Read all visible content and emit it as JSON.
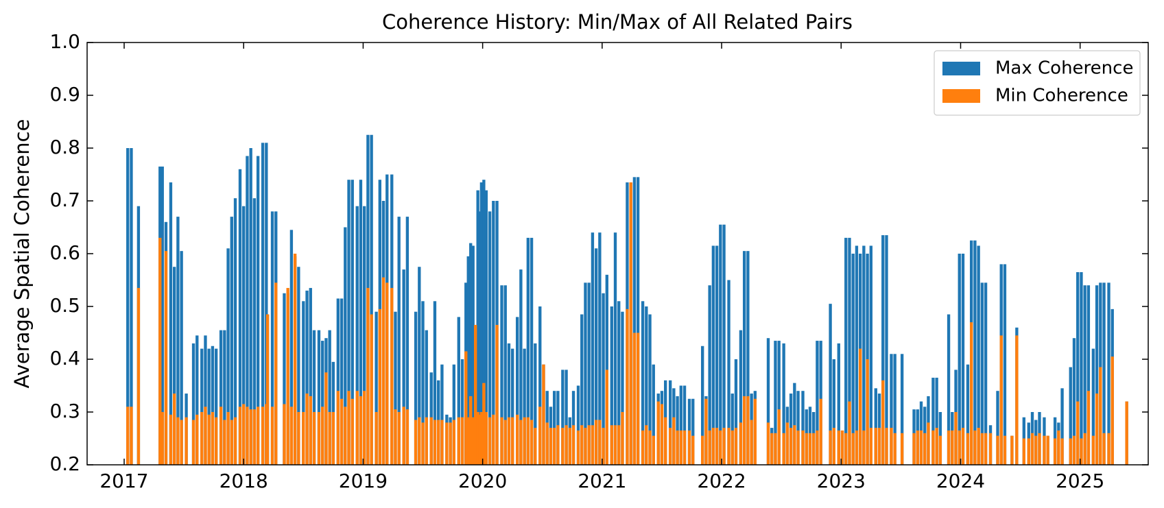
{
  "chart_data": {
    "type": "bar",
    "title": "Coherence History: Min/Max of All Related Pairs",
    "y_label": "Average Spatial Coherence",
    "x": [
      2017.03,
      2017.06,
      2017.12,
      2017.3,
      2017.32,
      2017.35,
      2017.39,
      2017.42,
      2017.45,
      2017.48,
      2017.52,
      2017.58,
      2017.61,
      2017.65,
      2017.68,
      2017.71,
      2017.74,
      2017.77,
      2017.81,
      2017.84,
      2017.87,
      2017.9,
      2017.93,
      2017.97,
      2018.0,
      2018.03,
      2018.06,
      2018.09,
      2018.12,
      2018.16,
      2018.19,
      2018.2,
      2018.24,
      2018.27,
      2018.34,
      2018.37,
      2018.4,
      2018.43,
      2018.46,
      2018.5,
      2018.53,
      2018.56,
      2018.59,
      2018.63,
      2018.66,
      2018.69,
      2018.72,
      2018.75,
      2018.79,
      2018.82,
      2018.85,
      2018.88,
      2018.91,
      2018.95,
      2018.98,
      2019.01,
      2019.04,
      2019.07,
      2019.11,
      2019.14,
      2019.17,
      2019.2,
      2019.24,
      2019.27,
      2019.3,
      2019.34,
      2019.37,
      2019.44,
      2019.47,
      2019.5,
      2019.53,
      2019.57,
      2019.6,
      2019.63,
      2019.66,
      2019.7,
      2019.73,
      2019.76,
      2019.8,
      2019.83,
      2019.86,
      2019.88,
      2019.9,
      2019.92,
      2019.94,
      2019.96,
      2019.98,
      2019.99,
      2020.01,
      2020.03,
      2020.06,
      2020.09,
      2020.12,
      2020.16,
      2020.19,
      2020.22,
      2020.25,
      2020.29,
      2020.32,
      2020.35,
      2020.38,
      2020.41,
      2020.44,
      2020.48,
      2020.51,
      2020.54,
      2020.57,
      2020.6,
      2020.63,
      2020.67,
      2020.7,
      2020.73,
      2020.76,
      2020.8,
      2020.83,
      2020.86,
      2020.89,
      2020.92,
      2020.95,
      2020.98,
      2021.01,
      2021.04,
      2021.08,
      2021.11,
      2021.14,
      2021.17,
      2021.21,
      2021.24,
      2021.27,
      2021.3,
      2021.34,
      2021.37,
      2021.4,
      2021.43,
      2021.47,
      2021.5,
      2021.53,
      2021.57,
      2021.6,
      2021.63,
      2021.66,
      2021.69,
      2021.73,
      2021.76,
      2021.84,
      2021.87,
      2021.9,
      2021.93,
      2021.96,
      2021.99,
      2022.02,
      2022.06,
      2022.09,
      2022.12,
      2022.16,
      2022.19,
      2022.22,
      2022.25,
      2022.28,
      2022.39,
      2022.42,
      2022.45,
      2022.48,
      2022.52,
      2022.55,
      2022.58,
      2022.61,
      2022.64,
      2022.68,
      2022.71,
      2022.74,
      2022.77,
      2022.8,
      2022.83,
      2022.91,
      2022.94,
      2022.98,
      2023.01,
      2023.04,
      2023.07,
      2023.1,
      2023.13,
      2023.16,
      2023.19,
      2023.22,
      2023.25,
      2023.29,
      2023.32,
      2023.35,
      2023.38,
      2023.42,
      2023.45,
      2023.51,
      2023.61,
      2023.64,
      2023.67,
      2023.7,
      2023.73,
      2023.77,
      2023.8,
      2023.83,
      2023.9,
      2023.93,
      2023.96,
      2023.99,
      2024.02,
      2024.06,
      2024.09,
      2024.12,
      2024.15,
      2024.18,
      2024.21,
      2024.25,
      2024.31,
      2024.34,
      2024.37,
      2024.43,
      2024.47,
      2024.53,
      2024.57,
      2024.6,
      2024.63,
      2024.66,
      2024.7,
      2024.73,
      2024.79,
      2024.82,
      2024.85,
      2024.92,
      2024.95,
      2024.98,
      2025.01,
      2025.04,
      2025.07,
      2025.11,
      2025.14,
      2025.17,
      2025.2,
      2025.24,
      2025.27,
      2025.39
    ],
    "series": [
      {
        "name": "Max Coherence",
        "color": "#1f77b4",
        "values": [
          0.8,
          0.8,
          0.69,
          0.765,
          0.765,
          0.66,
          0.735,
          0.575,
          0.67,
          0.605,
          0.335,
          0.43,
          0.445,
          0.42,
          0.445,
          0.42,
          0.425,
          0.42,
          0.455,
          0.455,
          0.61,
          0.67,
          0.705,
          0.76,
          0.69,
          0.785,
          0.8,
          0.705,
          0.785,
          0.81,
          0.81,
          0.485,
          0.68,
          0.68,
          0.525,
          0.525,
          0.645,
          0.595,
          0.575,
          0.51,
          0.53,
          0.535,
          0.455,
          0.455,
          0.435,
          0.44,
          0.455,
          0.395,
          0.515,
          0.515,
          0.65,
          0.74,
          0.74,
          0.69,
          0.74,
          0.69,
          0.825,
          0.825,
          0.49,
          0.74,
          0.7,
          0.75,
          0.75,
          0.49,
          0.67,
          0.57,
          0.67,
          0.49,
          0.575,
          0.51,
          0.455,
          0.375,
          0.51,
          0.36,
          0.39,
          0.295,
          0.29,
          0.39,
          0.48,
          0.4,
          0.545,
          0.595,
          0.62,
          0.615,
          0.465,
          0.72,
          0.68,
          0.735,
          0.74,
          0.72,
          0.68,
          0.7,
          0.7,
          0.54,
          0.54,
          0.43,
          0.42,
          0.48,
          0.57,
          0.42,
          0.63,
          0.63,
          0.43,
          0.5,
          0.39,
          0.34,
          0.31,
          0.34,
          0.34,
          0.38,
          0.38,
          0.29,
          0.34,
          0.35,
          0.485,
          0.545,
          0.545,
          0.64,
          0.61,
          0.64,
          0.525,
          0.56,
          0.5,
          0.64,
          0.51,
          0.49,
          0.735,
          0.735,
          0.745,
          0.745,
          0.51,
          0.5,
          0.485,
          0.39,
          0.335,
          0.34,
          0.36,
          0.36,
          0.345,
          0.33,
          0.35,
          0.35,
          0.325,
          0.325,
          0.425,
          0.33,
          0.54,
          0.615,
          0.615,
          0.655,
          0.655,
          0.55,
          0.335,
          0.4,
          0.455,
          0.605,
          0.605,
          0.335,
          0.34,
          0.44,
          0.27,
          0.435,
          0.435,
          0.43,
          0.31,
          0.335,
          0.355,
          0.34,
          0.34,
          0.305,
          0.31,
          0.3,
          0.435,
          0.435,
          0.505,
          0.4,
          0.43,
          0.265,
          0.63,
          0.63,
          0.6,
          0.615,
          0.6,
          0.615,
          0.6,
          0.615,
          0.345,
          0.335,
          0.635,
          0.635,
          0.41,
          0.41,
          0.41,
          0.305,
          0.305,
          0.32,
          0.31,
          0.33,
          0.365,
          0.365,
          0.3,
          0.485,
          0.3,
          0.38,
          0.6,
          0.6,
          0.39,
          0.625,
          0.625,
          0.615,
          0.545,
          0.545,
          0.275,
          0.34,
          0.58,
          0.58,
          0.255,
          0.46,
          0.29,
          0.28,
          0.3,
          0.285,
          0.3,
          0.29,
          0.255,
          0.29,
          0.28,
          0.345,
          0.385,
          0.44,
          0.565,
          0.565,
          0.54,
          0.54,
          0.42,
          0.54,
          0.545,
          0.545,
          0.545,
          0.495,
          0.32
        ]
      },
      {
        "name": "Min Coherence",
        "color": "#ff7f0e",
        "values": [
          0.31,
          0.31,
          0.535,
          0.63,
          0.3,
          0.605,
          0.295,
          0.335,
          0.29,
          0.285,
          0.29,
          0.285,
          0.295,
          0.3,
          0.31,
          0.295,
          0.3,
          0.29,
          0.31,
          0.285,
          0.3,
          0.285,
          0.29,
          0.31,
          0.315,
          0.31,
          0.305,
          0.305,
          0.31,
          0.31,
          0.315,
          0.485,
          0.31,
          0.545,
          0.315,
          0.535,
          0.31,
          0.6,
          0.3,
          0.3,
          0.335,
          0.33,
          0.3,
          0.3,
          0.31,
          0.375,
          0.3,
          0.3,
          0.34,
          0.325,
          0.31,
          0.34,
          0.325,
          0.34,
          0.33,
          0.34,
          0.535,
          0.485,
          0.3,
          0.495,
          0.555,
          0.545,
          0.535,
          0.305,
          0.3,
          0.31,
          0.305,
          0.285,
          0.29,
          0.28,
          0.29,
          0.29,
          0.285,
          0.285,
          0.285,
          0.28,
          0.28,
          0.285,
          0.29,
          0.29,
          0.415,
          0.29,
          0.33,
          0.29,
          0.465,
          0.3,
          0.295,
          0.3,
          0.355,
          0.3,
          0.29,
          0.295,
          0.465,
          0.29,
          0.285,
          0.29,
          0.29,
          0.295,
          0.285,
          0.29,
          0.29,
          0.285,
          0.27,
          0.31,
          0.39,
          0.28,
          0.27,
          0.27,
          0.275,
          0.27,
          0.275,
          0.27,
          0.275,
          0.265,
          0.275,
          0.27,
          0.275,
          0.275,
          0.285,
          0.285,
          0.27,
          0.38,
          0.275,
          0.275,
          0.275,
          0.3,
          0.495,
          0.735,
          0.45,
          0.45,
          0.265,
          0.275,
          0.265,
          0.255,
          0.32,
          0.315,
          0.29,
          0.27,
          0.29,
          0.265,
          0.265,
          0.265,
          0.265,
          0.255,
          0.255,
          0.325,
          0.265,
          0.27,
          0.27,
          0.265,
          0.27,
          0.27,
          0.265,
          0.27,
          0.28,
          0.33,
          0.33,
          0.285,
          0.325,
          0.28,
          0.26,
          0.26,
          0.305,
          0.26,
          0.28,
          0.27,
          0.275,
          0.265,
          0.265,
          0.26,
          0.26,
          0.26,
          0.265,
          0.325,
          0.265,
          0.27,
          0.265,
          0.265,
          0.26,
          0.32,
          0.26,
          0.265,
          0.42,
          0.265,
          0.4,
          0.27,
          0.27,
          0.27,
          0.36,
          0.27,
          0.27,
          0.26,
          0.26,
          0.26,
          0.265,
          0.265,
          0.26,
          0.28,
          0.265,
          0.27,
          0.255,
          0.265,
          0.265,
          0.3,
          0.265,
          0.27,
          0.26,
          0.47,
          0.265,
          0.27,
          0.26,
          0.26,
          0.26,
          0.255,
          0.445,
          0.255,
          0.255,
          0.445,
          0.25,
          0.25,
          0.26,
          0.255,
          0.26,
          0.255,
          0.255,
          0.25,
          0.265,
          0.25,
          0.25,
          0.255,
          0.32,
          0.25,
          0.26,
          0.34,
          0.255,
          0.335,
          0.385,
          0.26,
          0.26,
          0.405,
          0.32
        ]
      }
    ],
    "xlim": [
      2016.69,
      2025.57
    ],
    "xticks": [
      2017,
      2018,
      2019,
      2020,
      2021,
      2022,
      2023,
      2024,
      2025
    ],
    "ylim": [
      0.2,
      1
    ],
    "yticks": [
      0.2,
      0.3,
      0.4,
      0.5,
      0.6,
      0.7,
      0.8,
      0.9,
      {
        "value": 1,
        "label": "1.0"
      }
    ],
    "bar_width_years": 0.025,
    "overlay": true,
    "legend": "upper right",
    "grid": false
  }
}
